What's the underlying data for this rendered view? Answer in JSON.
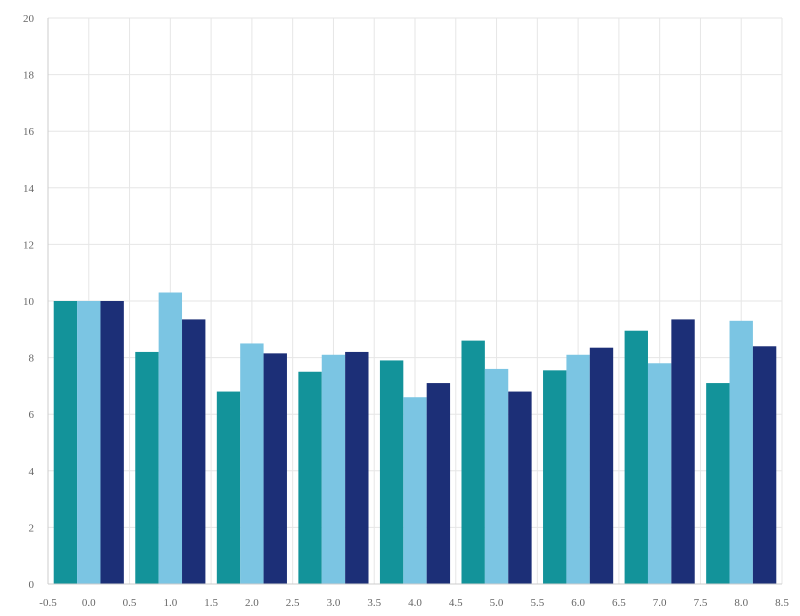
{
  "chart_data": {
    "type": "bar",
    "x": [
      0,
      1,
      2,
      3,
      4,
      5,
      6,
      7,
      8
    ],
    "series": [
      {
        "values": [
          10.0,
          8.2,
          6.8,
          7.5,
          7.9,
          8.6,
          7.55,
          8.95,
          7.1
        ],
        "color": "#13939a"
      },
      {
        "values": [
          10.0,
          10.3,
          8.5,
          8.1,
          6.6,
          7.6,
          8.1,
          7.8,
          9.3
        ],
        "color": "#7bc5e3"
      },
      {
        "values": [
          10.0,
          9.35,
          8.15,
          8.2,
          7.1,
          6.8,
          8.35,
          9.35,
          8.4
        ],
        "color": "#1c2f77"
      }
    ],
    "xlim": [
      -0.5,
      8.5
    ],
    "ylim": [
      0,
      20
    ],
    "x_ticks": [
      "-0.5",
      "0.0",
      "0.5",
      "1.0",
      "1.5",
      "2.0",
      "2.5",
      "3.0",
      "3.5",
      "4.0",
      "4.5",
      "5.0",
      "5.5",
      "6.0",
      "6.5",
      "7.0",
      "7.5",
      "8.0",
      "8.5"
    ],
    "y_ticks": [
      "0",
      "2",
      "4",
      "6",
      "8",
      "10",
      "12",
      "14",
      "16",
      "18",
      "20"
    ],
    "grid": true,
    "legend": "none"
  }
}
